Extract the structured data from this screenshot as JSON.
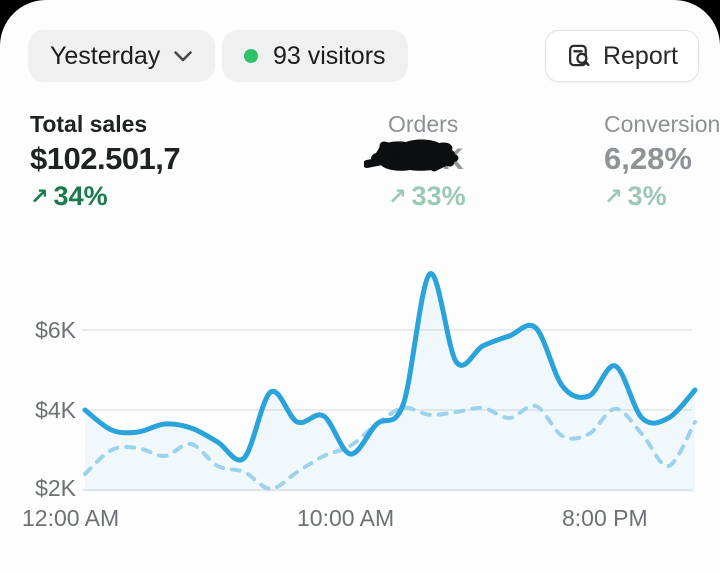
{
  "toolbar": {
    "period_label": "Yesterday",
    "visitors_label": "93 visitors",
    "report_label": "Report",
    "live_dot_color": "#2ec26d"
  },
  "metrics": [
    {
      "label": "Total sales",
      "value": "$102.501,7",
      "delta_arrow": "↗",
      "delta": "34%",
      "emphasis": "active"
    },
    {
      "label": "Orders",
      "value_redacted": true,
      "visible_remnant": "K",
      "delta_arrow": "↗",
      "delta": "33%",
      "emphasis": "muted"
    },
    {
      "label": "Conversion",
      "value": "6,28%",
      "delta_arrow": "↗",
      "delta": "3%",
      "emphasis": "muted"
    }
  ],
  "colors": {
    "accent_blue": "#2aa2da",
    "comparison_blue": "#9ed2ec",
    "area_fill": "rgba(42,162,218,0.055)",
    "delta_green": "#197a4d",
    "delta_green_muted": "#9cc9b4",
    "grid": "#e4e5e6",
    "axis_text": "#6d7175"
  },
  "chart_data": {
    "type": "line",
    "title": "",
    "x_unit": "hour of day",
    "unit": "$K",
    "hours": [
      0,
      1,
      2,
      3,
      4,
      5,
      6,
      7,
      8,
      9,
      10,
      11,
      12,
      13,
      14,
      15,
      16,
      17,
      18,
      19,
      20,
      21,
      22,
      23
    ],
    "series": [
      {
        "name": "current_period_sales",
        "style": "solid",
        "color": "#2aa2da",
        "values": [
          4.0,
          3.5,
          3.45,
          3.65,
          3.55,
          3.2,
          2.8,
          4.45,
          3.7,
          3.85,
          2.9,
          3.65,
          4.15,
          7.4,
          5.2,
          5.6,
          5.85,
          6.05,
          4.6,
          4.35,
          5.1,
          3.8,
          3.8,
          4.5
        ]
      },
      {
        "name": "comparison_period_sales",
        "style": "dashed",
        "color": "#9ed2ec",
        "values": [
          2.4,
          3.0,
          3.05,
          2.85,
          3.15,
          2.6,
          2.45,
          2.03,
          2.45,
          2.85,
          3.1,
          3.65,
          4.05,
          3.88,
          3.95,
          4.05,
          3.8,
          4.1,
          3.35,
          3.4,
          4.03,
          3.4,
          2.6,
          3.7
        ]
      }
    ],
    "y_ticks": [
      {
        "label": "$2K",
        "value": 2
      },
      {
        "label": "$4K",
        "value": 4
      },
      {
        "label": "$6K",
        "value": 6
      }
    ],
    "x_ticks": [
      {
        "label": "12:00 AM",
        "hour": 0
      },
      {
        "label": "10:00 AM",
        "hour": 10
      },
      {
        "label": "8:00 PM",
        "hour": 20
      }
    ],
    "ylim": [
      0.75,
      8.25
    ],
    "grid": "horizontal",
    "legend": "none"
  }
}
